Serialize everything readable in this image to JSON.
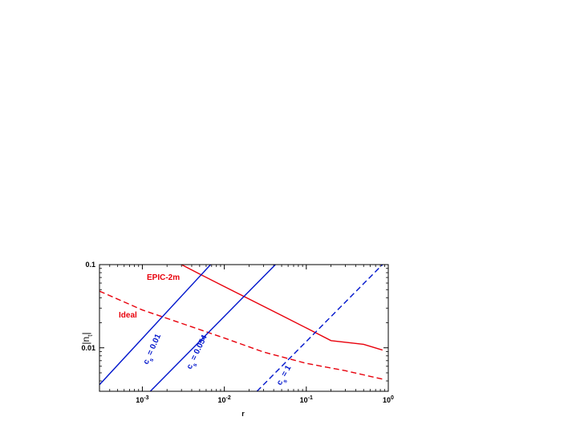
{
  "chart_data": {
    "type": "line",
    "xlabel": "r",
    "ylabel": "|n_t|",
    "ylabel_main": "|n",
    "ylabel_sub": "t",
    "ylabel_close": "|",
    "xscale": "log",
    "yscale": "log",
    "xlim": [
      0.0003,
      1
    ],
    "ylim": [
      0.003,
      0.1
    ],
    "x_ticks": [
      {
        "value": 0.001,
        "base": "10",
        "exp": "-3"
      },
      {
        "value": 0.01,
        "base": "10",
        "exp": "-2"
      },
      {
        "value": 0.1,
        "base": "10",
        "exp": "-1"
      },
      {
        "value": 1,
        "base": "10",
        "exp": "0"
      }
    ],
    "y_ticks": [
      {
        "value": 0.01,
        "label": "0.01"
      },
      {
        "value": 0.1,
        "label": "0.1"
      }
    ],
    "series": [
      {
        "name": "EPIC-2m",
        "color": "#e8000b",
        "dash": "solid",
        "points": [
          [
            0.003,
            0.1
          ],
          [
            0.005,
            0.077
          ],
          [
            0.01,
            0.0545
          ],
          [
            0.02,
            0.0386
          ],
          [
            0.05,
            0.0245
          ],
          [
            0.1,
            0.0173
          ],
          [
            0.2,
            0.0122
          ],
          [
            0.5,
            0.011
          ],
          [
            0.85,
            0.0094
          ]
        ]
      },
      {
        "name": "Ideal",
        "color": "#e8000b",
        "dash": "dashed",
        "points": [
          [
            0.0003,
            0.048
          ],
          [
            0.001,
            0.0285
          ],
          [
            0.003,
            0.0197
          ],
          [
            0.01,
            0.0131
          ],
          [
            0.03,
            0.0089
          ],
          [
            0.1,
            0.0065
          ],
          [
            0.3,
            0.0053
          ],
          [
            0.85,
            0.0042
          ]
        ]
      },
      {
        "name": "c_s = 0.01",
        "color": "#0015cc",
        "dash": "solid",
        "points": [
          [
            0.0003,
            0.0036
          ],
          [
            0.0068,
            0.1
          ]
        ]
      },
      {
        "name": "c_s = 0.054",
        "color": "#0015cc",
        "dash": "solid",
        "points": [
          [
            0.00125,
            0.003
          ],
          [
            0.042,
            0.1
          ]
        ]
      },
      {
        "name": "c_s = 1",
        "color": "#0015cc",
        "dash": "dashed",
        "points": [
          [
            0.025,
            0.003
          ],
          [
            0.85,
            0.1
          ]
        ]
      }
    ],
    "annotations": [
      {
        "text": "EPIC-2m",
        "color": "#e8000b"
      },
      {
        "text": "Ideal",
        "color": "#e8000b"
      },
      {
        "text_main": "c",
        "text_sub": "s",
        "text_rest": " = 0.01",
        "color": "#0015cc"
      },
      {
        "text_main": "c",
        "text_sub": "s",
        "text_rest": " = 0.054",
        "color": "#0015cc"
      },
      {
        "text_main": "c",
        "text_sub": "s",
        "text_rest": " = 1",
        "color": "#0015cc"
      }
    ],
    "grid": false,
    "legend": "none"
  }
}
